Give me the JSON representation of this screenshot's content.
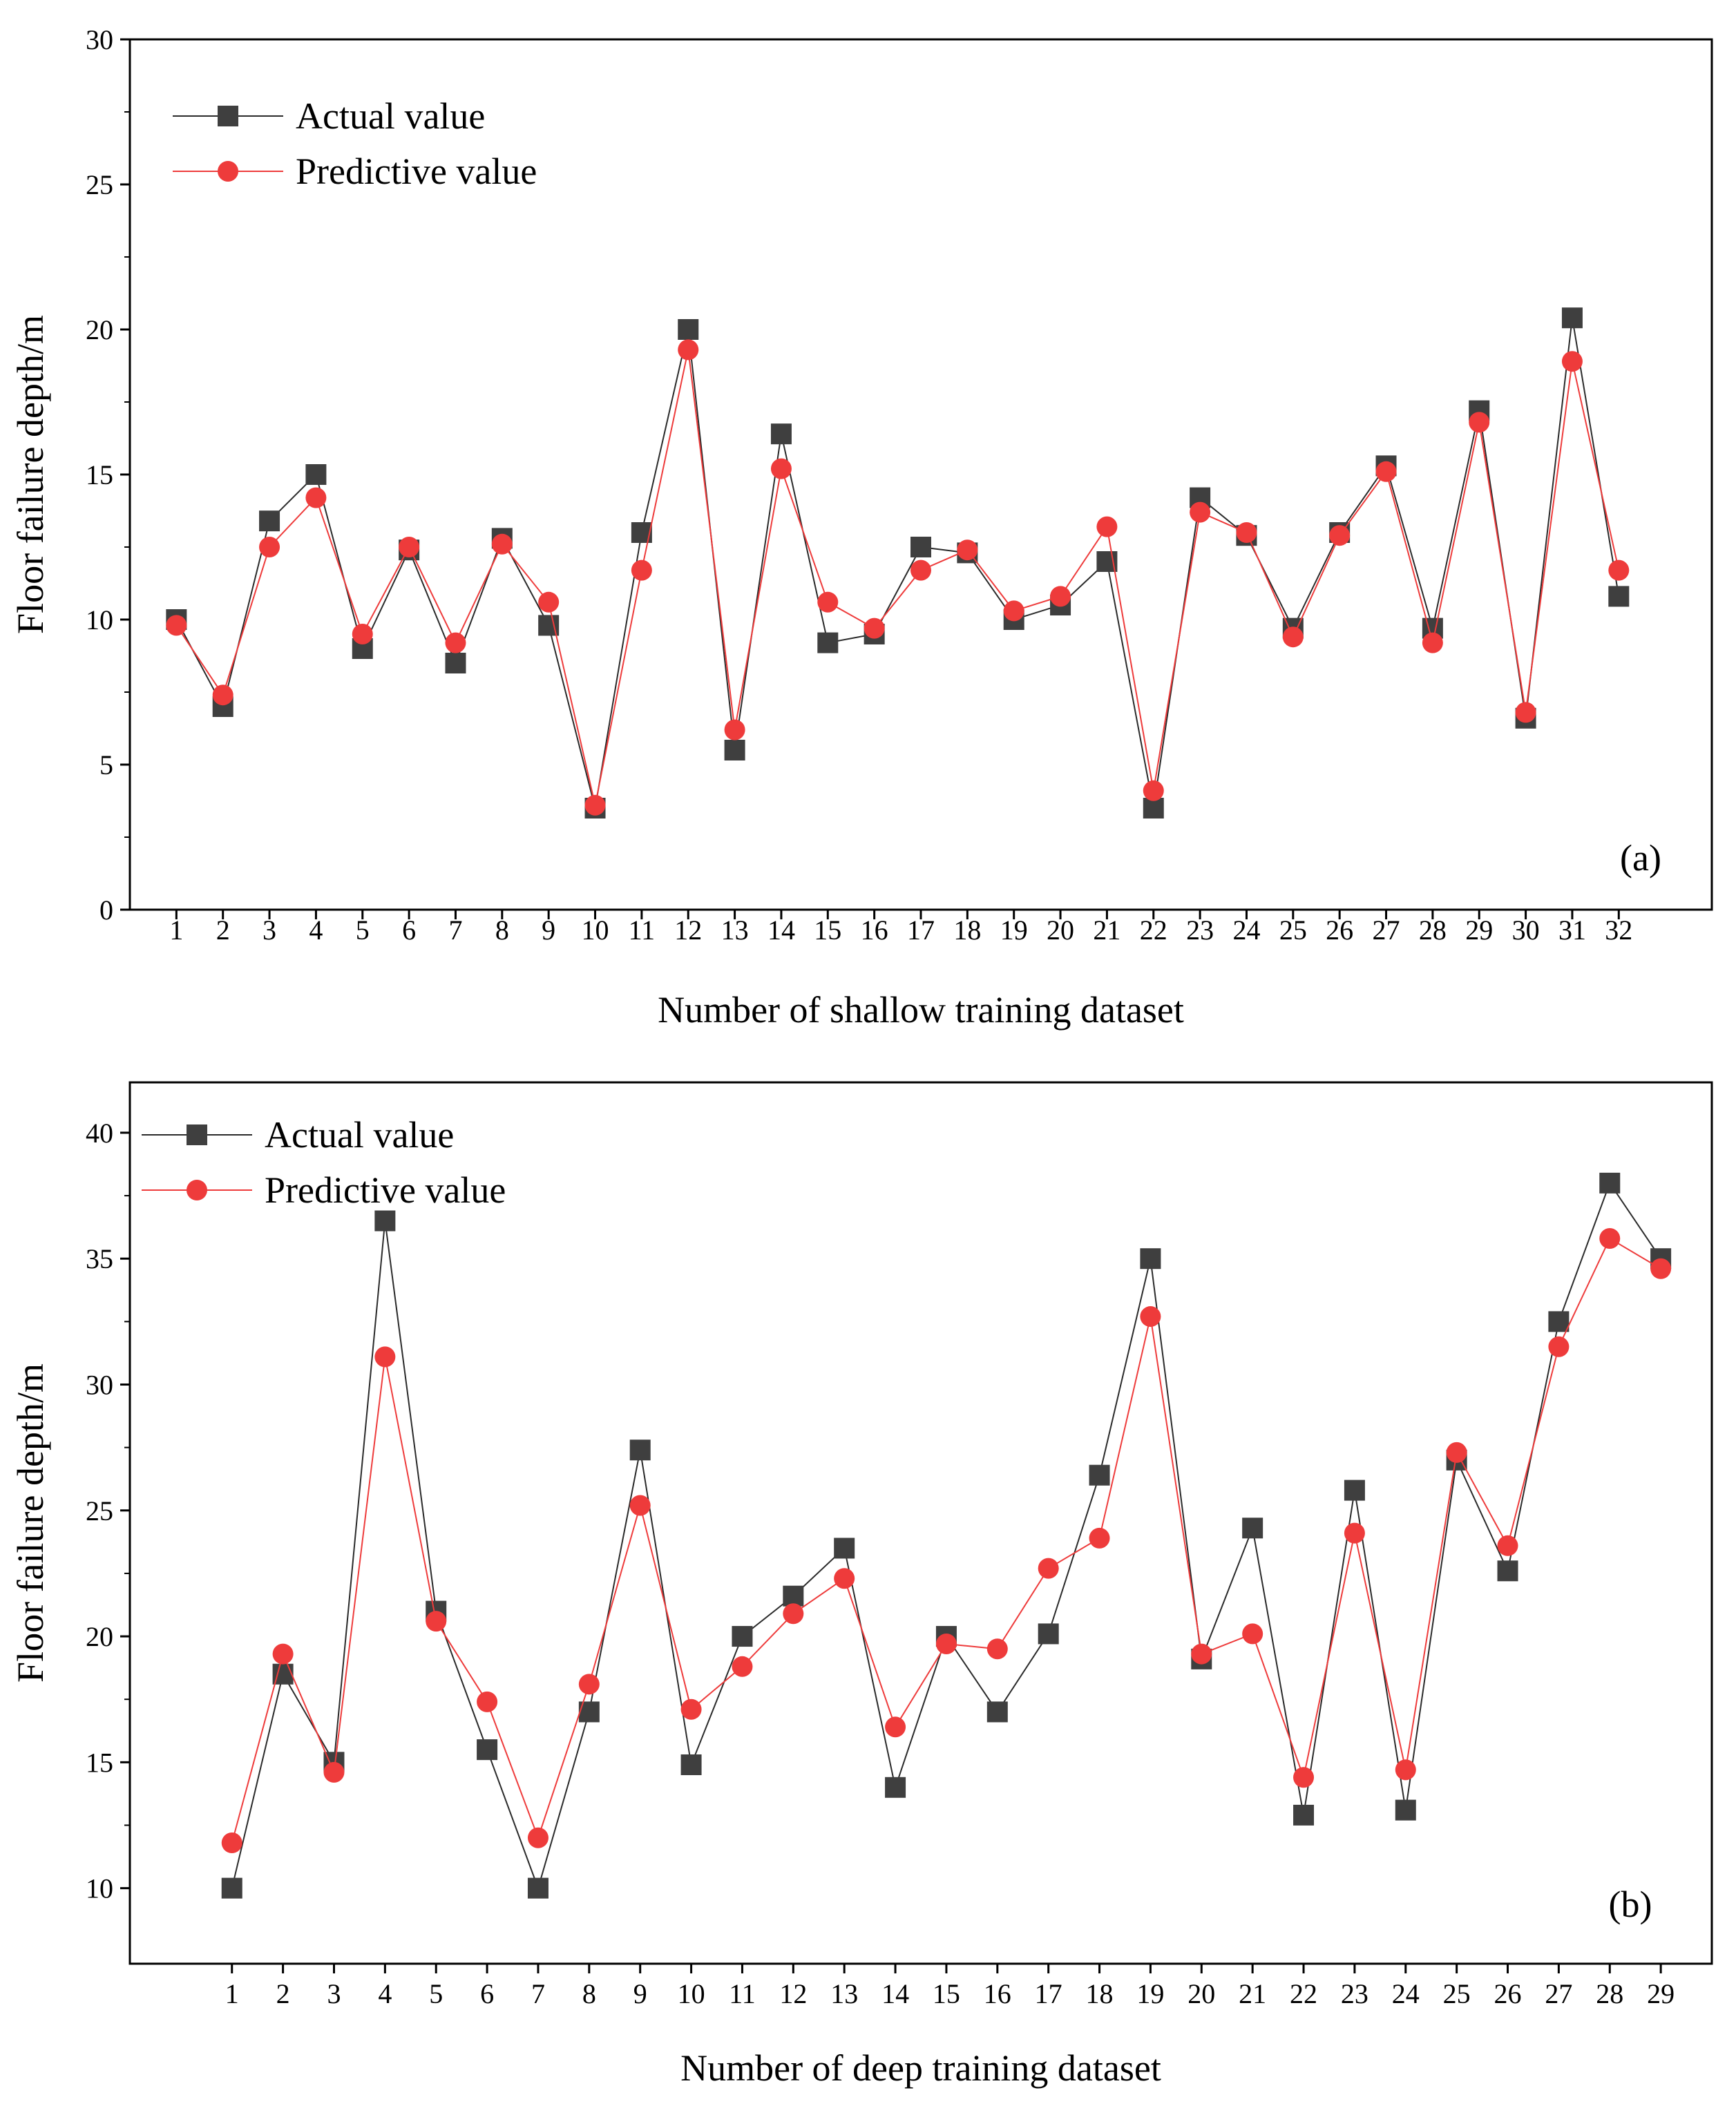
{
  "chart_data": [
    {
      "type": "line",
      "panel_label": "(a)",
      "xlabel": "Number of shallow training dataset",
      "ylabel": "Floor failure depth/m",
      "x": [
        1,
        2,
        3,
        4,
        5,
        6,
        7,
        8,
        9,
        10,
        11,
        12,
        13,
        14,
        15,
        16,
        17,
        18,
        19,
        20,
        21,
        22,
        23,
        24,
        25,
        26,
        27,
        28,
        29,
        30,
        31,
        32
      ],
      "xlim": [
        0,
        34
      ],
      "ylim": [
        0,
        30
      ],
      "yticks": [
        0,
        5,
        10,
        15,
        20,
        25,
        30
      ],
      "legend_position": "top-left",
      "series": [
        {
          "name": "Actual value",
          "marker": "square",
          "color": "#3f3f3f",
          "values": [
            10.0,
            7.0,
            13.4,
            15.0,
            9.0,
            12.4,
            8.5,
            12.8,
            9.8,
            3.5,
            13.0,
            20.0,
            5.5,
            16.4,
            9.2,
            9.5,
            12.5,
            12.3,
            10.0,
            10.5,
            12.0,
            3.5,
            14.2,
            12.9,
            9.7,
            13.0,
            15.3,
            9.7,
            17.2,
            6.6,
            20.4,
            10.8
          ]
        },
        {
          "name": "Predictive value",
          "marker": "circle",
          "color": "#ee3b3b",
          "values": [
            9.8,
            7.4,
            12.5,
            14.2,
            9.5,
            12.5,
            9.2,
            12.6,
            10.6,
            3.6,
            11.7,
            19.3,
            6.2,
            15.2,
            10.6,
            9.7,
            11.7,
            12.4,
            10.3,
            10.8,
            13.2,
            4.1,
            13.7,
            13.0,
            9.4,
            12.9,
            15.1,
            9.2,
            16.8,
            6.8,
            18.9,
            11.7
          ]
        }
      ]
    },
    {
      "type": "line",
      "panel_label": "(b)",
      "xlabel": "Number of deep training dataset",
      "ylabel": "Floor failure depth/m",
      "x": [
        1,
        2,
        3,
        4,
        5,
        6,
        7,
        8,
        9,
        10,
        11,
        12,
        13,
        14,
        15,
        16,
        17,
        18,
        19,
        20,
        21,
        22,
        23,
        24,
        25,
        26,
        27,
        28,
        29
      ],
      "xlim": [
        -1,
        30
      ],
      "ylim": [
        7,
        42
      ],
      "yticks": [
        10,
        15,
        20,
        25,
        30,
        35,
        40
      ],
      "legend_position": "top-left",
      "series": [
        {
          "name": "Actual value",
          "marker": "square",
          "color": "#3f3f3f",
          "values": [
            10.0,
            18.5,
            15.0,
            36.5,
            21.0,
            15.5,
            10.0,
            17.0,
            27.4,
            14.9,
            20.0,
            21.6,
            23.5,
            14.0,
            20.0,
            17.0,
            20.1,
            26.4,
            35.0,
            19.1,
            24.3,
            12.9,
            25.8,
            13.1,
            27.0,
            22.6,
            32.5,
            38.0,
            35.0
          ]
        },
        {
          "name": "Predictive value",
          "marker": "circle",
          "color": "#ee3b3b",
          "values": [
            11.8,
            19.3,
            14.6,
            31.1,
            20.6,
            17.4,
            12.0,
            18.1,
            25.2,
            17.1,
            18.8,
            20.9,
            22.3,
            16.4,
            19.7,
            19.5,
            22.7,
            23.9,
            32.7,
            19.3,
            20.1,
            14.4,
            24.1,
            14.7,
            27.3,
            23.6,
            31.5,
            35.8,
            34.6
          ]
        }
      ]
    }
  ]
}
